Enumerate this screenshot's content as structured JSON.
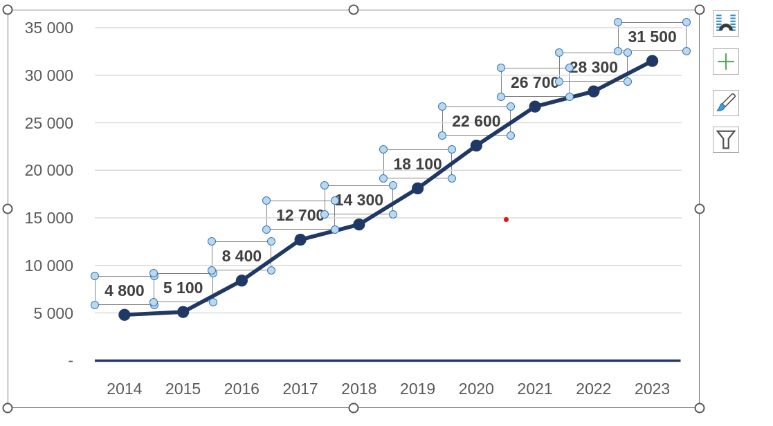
{
  "chart_data": {
    "type": "line",
    "title": "",
    "legend": "none",
    "grid": true,
    "marker": "circle",
    "categories": [
      "2014",
      "2015",
      "2016",
      "2017",
      "2018",
      "2019",
      "2020",
      "2021",
      "2022",
      "2023"
    ],
    "values": [
      4800,
      5100,
      8400,
      12700,
      14300,
      18100,
      22600,
      26700,
      28300,
      31500
    ],
    "data_labels": [
      "4 800",
      "5 100",
      "8 400",
      "12 700",
      "14 300",
      "18 100",
      "22 600",
      "26 700",
      "28 300",
      "31 500"
    ],
    "y_axis": {
      "tick_labels": [
        "35 000",
        "30 000",
        "25 000",
        "20 000",
        "15 000",
        "10 000",
        "5 000",
        "-"
      ],
      "tick_values": [
        35000,
        30000,
        25000,
        20000,
        15000,
        10000,
        5000,
        0
      ],
      "range": [
        0,
        35000
      ]
    },
    "x_axis": {
      "range_labels": "years 2014-2023"
    }
  },
  "colors": {
    "series_line": "#1F3864",
    "axis_line": "#1F3864",
    "gridline": "#D9D9D9",
    "axis_text": "#595959",
    "label_text": "#404040",
    "label_border": "#7F7F7F",
    "label_handle_fill": "#BDD7EE",
    "label_handle_stroke": "#2E75B6",
    "selection_handle_stroke": "#595959",
    "chart_border": "#757575",
    "red_dot": "#EE1111"
  },
  "selection": {
    "chart_selected": true,
    "data_labels_selected": true
  },
  "side_buttons": [
    {
      "icon": "layout-options-icon"
    },
    {
      "icon": "chart-elements-plus-icon"
    },
    {
      "icon": "chart-styles-brush-icon"
    },
    {
      "icon": "chart-filters-funnel-icon"
    }
  ]
}
